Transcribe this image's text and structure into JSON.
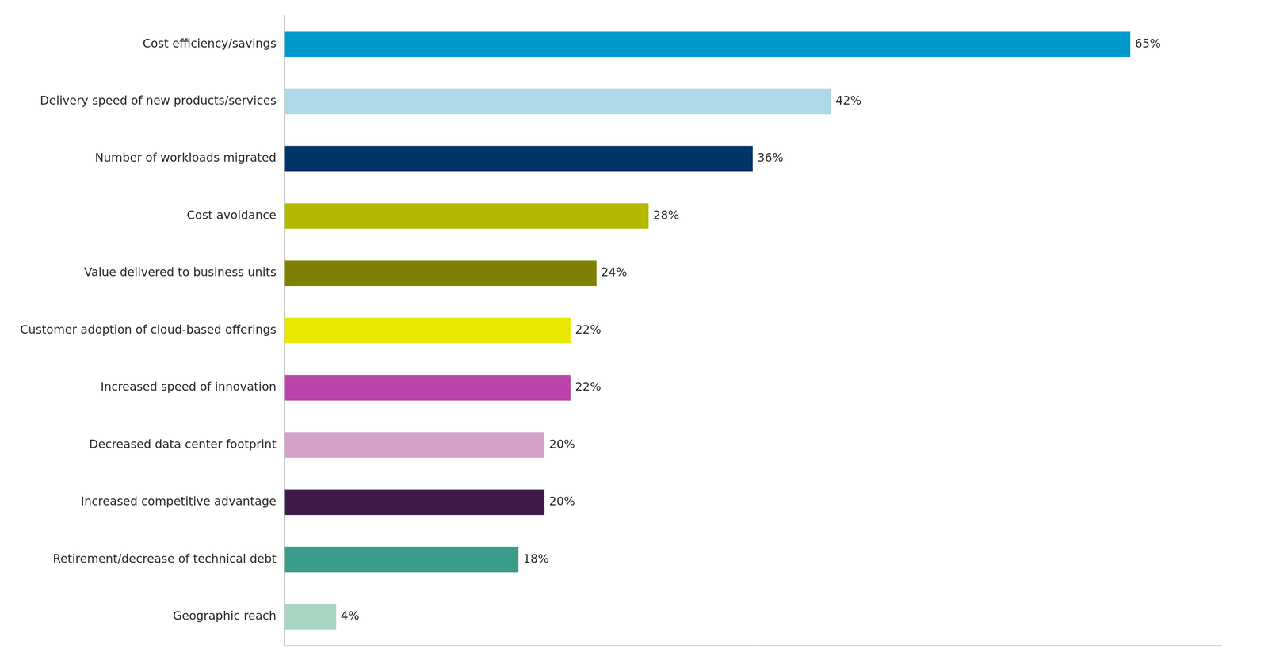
{
  "chart_data": {
    "type": "bar",
    "orientation": "horizontal",
    "categories": [
      "Cost efficiency/savings",
      "Delivery speed of new products/services",
      "Number of workloads migrated",
      "Cost avoidance",
      "Value delivered to business units",
      "Customer adoption of cloud-based offerings",
      "Increased speed of innovation",
      "Decreased data center footprint",
      "Increased competitive advantage",
      "Retirement/decrease of technical debt",
      "Geographic reach"
    ],
    "values": [
      65,
      42,
      36,
      28,
      24,
      22,
      22,
      20,
      20,
      18,
      4
    ],
    "value_labels": [
      "65%",
      "42%",
      "36%",
      "28%",
      "24%",
      "22%",
      "22%",
      "20%",
      "20%",
      "18%",
      "4%"
    ],
    "colors": [
      "#0099CC",
      "#ADD8E6",
      "#003366",
      "#B5B800",
      "#808000",
      "#E8E800",
      "#BB44AA",
      "#D4A0C8",
      "#3D1A4A",
      "#3B9C8A",
      "#A8D5C2"
    ],
    "xlim": [
      0,
      72
    ],
    "grid": false,
    "data_labels": true,
    "tick_labels": "y"
  }
}
